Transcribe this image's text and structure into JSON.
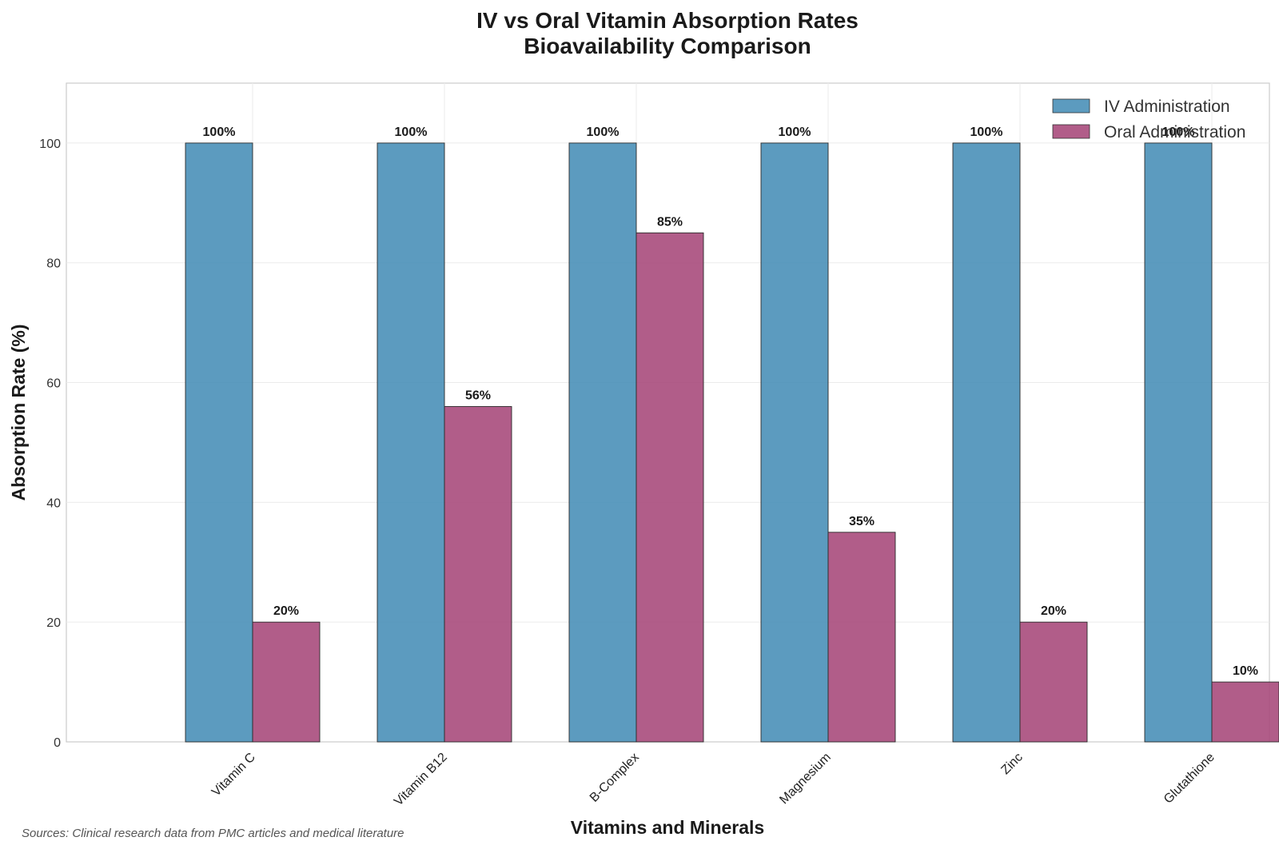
{
  "chart_data": {
    "type": "bar",
    "title": "IV vs Oral Vitamin Absorption Rates",
    "subtitle": "Bioavailability Comparison",
    "xlabel": "Vitamins and Minerals",
    "ylabel": "Absorption Rate (%)",
    "ylim": [
      0,
      110
    ],
    "yticks": [
      "0",
      "20",
      "40",
      "60",
      "80",
      "100"
    ],
    "grid": true,
    "legend_position": "top-right",
    "categories": [
      "Vitamin C",
      "Vitamin B12",
      "B-Complex",
      "Magnesium",
      "Zinc",
      "Glutathione"
    ],
    "series": [
      {
        "name": "IV Administration",
        "color": "#4a90b8",
        "values": [
          100,
          100,
          100,
          100,
          100,
          100
        ],
        "labels": [
          "100%",
          "100%",
          "100%",
          "100%",
          "100%",
          "100%"
        ]
      },
      {
        "name": "Oral Administration",
        "color": "#a94b7c",
        "values": [
          20,
          56,
          85,
          35,
          20,
          10
        ],
        "labels": [
          "20%",
          "56%",
          "85%",
          "35%",
          "20%",
          "10%"
        ]
      }
    ],
    "source_note": "Sources: Clinical research data from PMC articles and medical literature"
  }
}
